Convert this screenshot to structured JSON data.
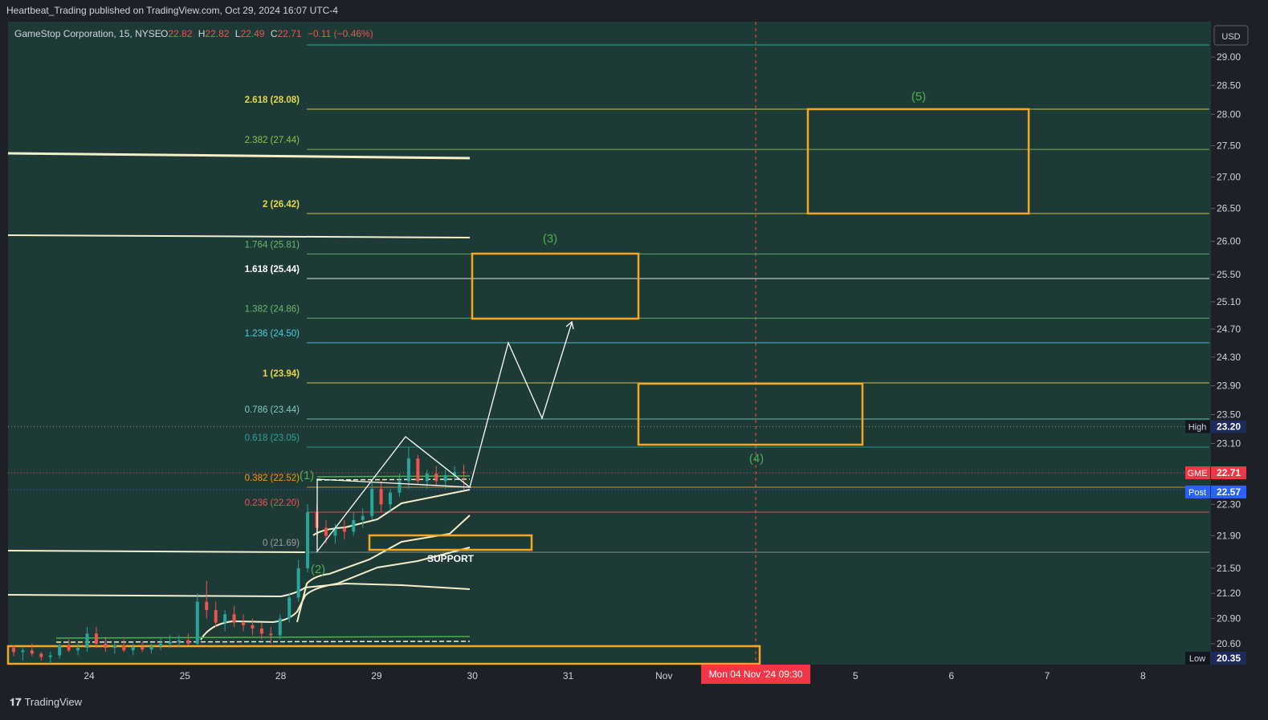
{
  "header": {
    "published": "Heartbeat_Trading published on TradingView.com, Oct 29, 2024 16:07 UTC-4"
  },
  "legend": {
    "symbol": "GameStop Corporation, 15, NYSE",
    "o_label": "O",
    "o_value": "22.82",
    "h_label": "H",
    "h_value": "22.82",
    "l_label": "L",
    "l_value": "22.49",
    "c_label": "C",
    "c_value": "22.71",
    "change": "−0.11 (−0.46%)"
  },
  "colors": {
    "plot_bg": "#1e3a36",
    "axis_bg": "#1e2028",
    "up": "#26a69a",
    "down": "#ef5350",
    "box": "#f5a623",
    "wave_label": "#4caf50",
    "vwap": "#f3efc8"
  },
  "chart_data": {
    "type": "candlestick",
    "currency": "USD",
    "y_ticks": [
      "29.00",
      "28.50",
      "28.00",
      "27.50",
      "27.00",
      "26.50",
      "26.00",
      "25.50",
      "25.10",
      "24.70",
      "24.30",
      "23.90",
      "23.50",
      "23.10",
      "22.30",
      "21.90",
      "21.50",
      "21.20",
      "20.90",
      "20.60"
    ],
    "x_ticks": [
      "24",
      "25",
      "28",
      "29",
      "30",
      "31",
      "Nov",
      "5",
      "6",
      "7",
      "8"
    ],
    "x_tick_index": [
      0,
      1,
      2,
      3,
      4,
      5,
      6,
      8,
      9,
      10,
      11
    ],
    "cursor_date_label": "Mon 04 Nov '24   09:30",
    "cursor_index": 7,
    "fib_levels": [
      {
        "label": "2.618 (28.08)",
        "value": 28.08,
        "color": "#e6d84a"
      },
      {
        "label": "2.382 (27.44)",
        "value": 27.44,
        "color": "#8bc34a"
      },
      {
        "label": "2 (26.42)",
        "value": 26.42,
        "color": "#e6d84a"
      },
      {
        "label": "1.764 (25.81)",
        "value": 25.81,
        "color": "#66bb6a"
      },
      {
        "label": "1.618 (25.44)",
        "value": 25.44,
        "color": "#ffffff"
      },
      {
        "label": "1.382 (24.86)",
        "value": 24.86,
        "color": "#66bb6a"
      },
      {
        "label": "1.236 (24.50)",
        "value": 24.5,
        "color": "#4dd0e1"
      },
      {
        "label": "1 (23.94)",
        "value": 23.94,
        "color": "#e6d84a"
      },
      {
        "label": "0.786 (23.44)",
        "value": 23.44,
        "color": "#80cbc4"
      },
      {
        "label": "0.618 (23.05)",
        "value": 23.05,
        "color": "#26a69a"
      },
      {
        "label": "0.382 (22.52)",
        "value": 22.52,
        "color": "#ff9800"
      },
      {
        "label": "0.236 (22.20)",
        "value": 22.2,
        "color": "#ef5350"
      },
      {
        "label": "0 (21.69)",
        "value": 21.69,
        "color": "#9e9e9e"
      }
    ],
    "price_tags": [
      {
        "label": "High",
        "value": "23.20"
      },
      {
        "label": "GME",
        "value": "22.71"
      },
      {
        "label": "Post",
        "value": "22.57"
      },
      {
        "label": "Low",
        "value": "20.35"
      }
    ],
    "wave_labels": [
      "(1)",
      "(2)",
      "(3)",
      "(4)",
      "(5)"
    ],
    "annotation": "SUPPORT",
    "candles": [
      [
        20.55,
        20.58,
        20.45,
        20.5
      ],
      [
        20.5,
        20.55,
        20.4,
        20.52
      ],
      [
        20.52,
        20.6,
        20.45,
        20.48
      ],
      [
        20.48,
        20.5,
        20.4,
        20.44
      ],
      [
        20.44,
        20.5,
        20.36,
        20.46
      ],
      [
        20.46,
        20.6,
        20.42,
        20.58
      ],
      [
        20.58,
        20.65,
        20.5,
        20.52
      ],
      [
        20.52,
        20.6,
        20.46,
        20.55
      ],
      [
        20.55,
        20.8,
        20.5,
        20.72
      ],
      [
        20.72,
        20.8,
        20.55,
        20.6
      ],
      [
        20.6,
        20.68,
        20.5,
        20.55
      ],
      [
        20.55,
        20.62,
        20.48,
        20.58
      ],
      [
        20.58,
        20.65,
        20.5,
        20.52
      ],
      [
        20.52,
        20.6,
        20.46,
        20.56
      ],
      [
        20.56,
        20.62,
        20.5,
        20.53
      ],
      [
        20.53,
        20.6,
        20.48,
        20.57
      ],
      [
        20.57,
        20.66,
        20.52,
        20.6
      ],
      [
        20.6,
        20.7,
        20.55,
        20.62
      ],
      [
        20.62,
        20.7,
        20.56,
        20.64
      ],
      [
        20.64,
        20.72,
        20.58,
        20.6
      ],
      [
        20.6,
        21.2,
        20.58,
        21.1
      ],
      [
        21.1,
        21.35,
        20.9,
        21.0
      ],
      [
        21.0,
        21.1,
        20.8,
        20.85
      ],
      [
        20.85,
        21.0,
        20.75,
        20.95
      ],
      [
        20.95,
        21.05,
        20.8,
        20.85
      ],
      [
        20.85,
        20.95,
        20.75,
        20.82
      ],
      [
        20.82,
        20.9,
        20.7,
        20.78
      ],
      [
        20.78,
        20.85,
        20.65,
        20.72
      ],
      [
        20.72,
        20.8,
        20.6,
        20.7
      ],
      [
        20.7,
        20.95,
        20.65,
        20.9
      ],
      [
        20.9,
        21.2,
        20.85,
        21.15
      ],
      [
        21.15,
        21.6,
        21.1,
        21.5
      ],
      [
        21.5,
        22.3,
        21.45,
        22.2
      ],
      [
        22.2,
        22.3,
        21.9,
        22.0
      ],
      [
        22.0,
        22.1,
        21.8,
        21.9
      ],
      [
        21.9,
        22.05,
        21.8,
        22.0
      ],
      [
        22.0,
        22.1,
        21.85,
        21.95
      ],
      [
        21.95,
        22.2,
        21.9,
        22.1
      ],
      [
        22.1,
        22.25,
        22.0,
        22.15
      ],
      [
        22.15,
        22.6,
        22.1,
        22.5
      ],
      [
        22.5,
        22.6,
        22.2,
        22.3
      ],
      [
        22.3,
        22.5,
        22.2,
        22.45
      ],
      [
        22.45,
        22.7,
        22.4,
        22.6
      ],
      [
        22.6,
        23.05,
        22.5,
        22.9
      ],
      [
        22.9,
        22.95,
        22.55,
        22.6
      ],
      [
        22.6,
        22.75,
        22.5,
        22.7
      ],
      [
        22.7,
        22.8,
        22.55,
        22.6
      ],
      [
        22.6,
        22.75,
        22.5,
        22.68
      ],
      [
        22.68,
        22.8,
        22.6,
        22.72
      ],
      [
        22.72,
        22.82,
        22.49,
        22.71
      ]
    ],
    "projection": [
      {
        "i": 4.38,
        "y": 22.57
      },
      {
        "i": 4.38,
        "y": 22.57
      },
      {
        "i": 4.38,
        "y": 22.57
      }
    ]
  }
}
